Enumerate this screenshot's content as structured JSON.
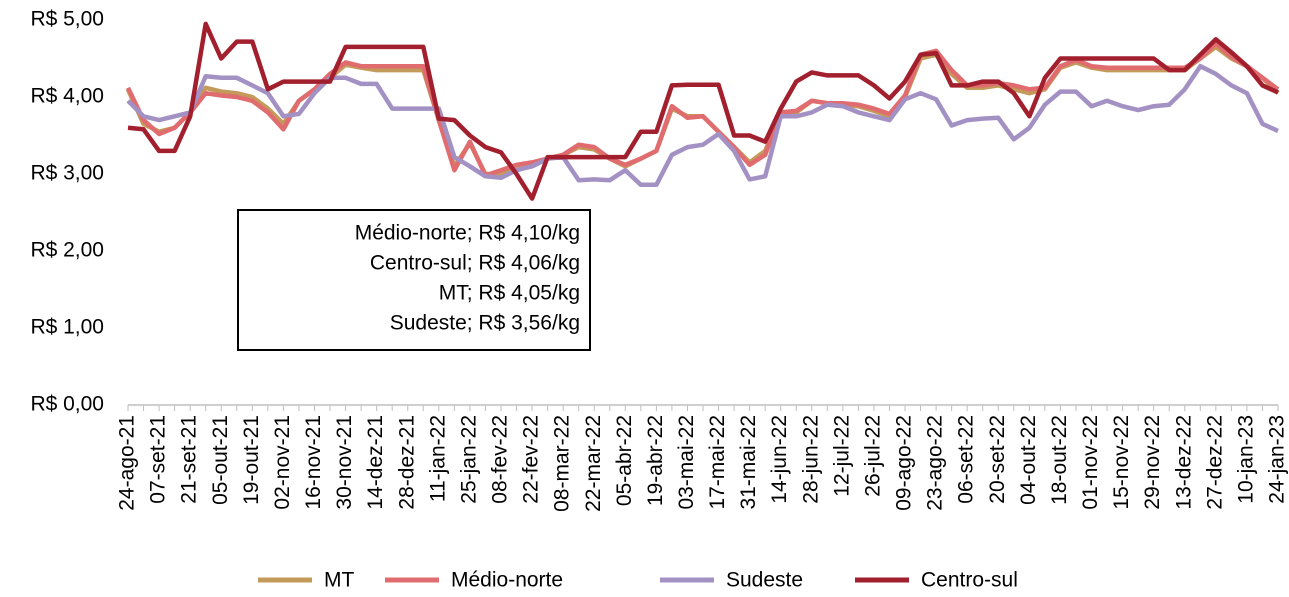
{
  "chart_data": {
    "type": "line",
    "categories": [
      "24-ago-21",
      null,
      "07-set-21",
      null,
      "21-set-21",
      null,
      "05-out-21",
      null,
      "19-out-21",
      null,
      "02-nov-21",
      null,
      "16-nov-21",
      null,
      "30-nov-21",
      null,
      "14-dez-21",
      null,
      "28-dez-21",
      null,
      "11-jan-22",
      null,
      "25-jan-22",
      null,
      "08-fev-22",
      null,
      "22-fev-22",
      null,
      "08-mar-22",
      null,
      "22-mar-22",
      null,
      "05-abr-22",
      null,
      "19-abr-22",
      null,
      "03-mai-22",
      null,
      "17-mai-22",
      null,
      "31-mai-22",
      null,
      "14-jun-22",
      null,
      "28-jun-22",
      null,
      "12-jul-22",
      null,
      "26-jul-22",
      null,
      "09-ago-22",
      null,
      "23-ago-22",
      null,
      "06-set-22",
      null,
      "20-set-22",
      null,
      "04-out-22",
      null,
      "18-out-22",
      null,
      "01-nov-22",
      null,
      "15-nov-22",
      null,
      "29-nov-22",
      null,
      "13-dez-22",
      null,
      "27-dez-22",
      null,
      "10-jan-23",
      null,
      "24-jan-23"
    ],
    "series": [
      {
        "name": "MT",
        "color": "#c49a5a",
        "values": [
          4.1,
          3.65,
          3.55,
          3.6,
          3.8,
          4.12,
          4.07,
          4.05,
          4.0,
          3.85,
          3.65,
          3.95,
          4.1,
          4.25,
          4.42,
          4.38,
          4.35,
          4.35,
          4.35,
          4.35,
          3.7,
          3.1,
          3.4,
          3.0,
          3.0,
          3.1,
          3.1,
          3.2,
          3.25,
          3.35,
          3.32,
          3.2,
          3.1,
          3.2,
          3.3,
          3.85,
          3.75,
          3.75,
          3.55,
          3.35,
          3.15,
          3.3,
          3.78,
          3.8,
          3.95,
          3.92,
          3.9,
          3.88,
          3.82,
          3.75,
          4.0,
          4.5,
          4.55,
          4.3,
          4.12,
          4.12,
          4.15,
          4.1,
          4.05,
          4.1,
          4.38,
          4.45,
          4.38,
          4.35,
          4.35,
          4.35,
          4.35,
          4.35,
          4.35,
          4.5,
          4.65,
          4.5,
          4.4,
          4.25,
          4.05
        ]
      },
      {
        "name": "Médio-norte",
        "color": "#e06c70",
        "values": [
          4.12,
          3.7,
          3.52,
          3.6,
          3.8,
          4.05,
          4.02,
          4.0,
          3.95,
          3.8,
          3.58,
          3.95,
          4.1,
          4.3,
          4.45,
          4.4,
          4.4,
          4.4,
          4.4,
          4.4,
          3.7,
          3.05,
          3.42,
          2.98,
          3.05,
          3.12,
          3.15,
          3.2,
          3.25,
          3.38,
          3.35,
          3.2,
          3.12,
          3.2,
          3.3,
          3.88,
          3.73,
          3.75,
          3.55,
          3.35,
          3.12,
          3.25,
          3.8,
          3.82,
          3.95,
          3.92,
          3.92,
          3.9,
          3.85,
          3.78,
          4.02,
          4.55,
          4.6,
          4.35,
          4.15,
          4.15,
          4.18,
          4.15,
          4.1,
          4.12,
          4.4,
          4.48,
          4.4,
          4.38,
          4.38,
          4.38,
          4.38,
          4.38,
          4.38,
          4.5,
          4.7,
          4.52,
          4.4,
          4.25,
          4.1
        ]
      },
      {
        "name": "Sudeste",
        "color": "#a391c4",
        "values": [
          3.95,
          3.75,
          3.7,
          3.75,
          3.8,
          4.27,
          4.25,
          4.25,
          4.15,
          4.05,
          3.75,
          3.78,
          4.05,
          4.25,
          4.25,
          4.17,
          4.17,
          3.85,
          3.85,
          3.85,
          3.85,
          3.22,
          3.1,
          2.97,
          2.95,
          3.05,
          3.1,
          3.2,
          3.22,
          2.92,
          2.93,
          2.92,
          3.05,
          2.86,
          2.86,
          3.25,
          3.35,
          3.38,
          3.52,
          3.3,
          2.93,
          2.97,
          3.75,
          3.75,
          3.8,
          3.9,
          3.88,
          3.8,
          3.75,
          3.7,
          3.97,
          4.05,
          3.97,
          3.63,
          3.7,
          3.72,
          3.73,
          3.45,
          3.6,
          3.9,
          4.07,
          4.07,
          3.88,
          3.95,
          3.88,
          3.83,
          3.88,
          3.9,
          4.1,
          4.4,
          4.3,
          4.15,
          4.05,
          3.65,
          3.56
        ]
      },
      {
        "name": "Centro-sul",
        "color": "#a21f2e",
        "values": [
          3.6,
          3.58,
          3.3,
          3.3,
          3.75,
          4.95,
          4.5,
          4.72,
          4.72,
          4.1,
          4.2,
          4.2,
          4.2,
          4.2,
          4.65,
          4.65,
          4.65,
          4.65,
          4.65,
          4.65,
          3.72,
          3.7,
          3.5,
          3.35,
          3.28,
          3.0,
          2.68,
          3.22,
          3.22,
          3.22,
          3.22,
          3.22,
          3.22,
          3.55,
          3.55,
          4.15,
          4.16,
          4.16,
          4.16,
          3.5,
          3.5,
          3.42,
          3.85,
          4.2,
          4.32,
          4.28,
          4.28,
          4.28,
          4.15,
          3.98,
          4.2,
          4.55,
          4.57,
          4.15,
          4.15,
          4.2,
          4.2,
          4.05,
          3.75,
          4.25,
          4.5,
          4.5,
          4.5,
          4.5,
          4.5,
          4.5,
          4.5,
          4.35,
          4.35,
          4.55,
          4.75,
          4.58,
          4.4,
          4.15,
          4.06
        ]
      }
    ],
    "ylim": [
      0,
      5
    ],
    "yticks": [
      {
        "value": 0,
        "label": "R$ 0,00"
      },
      {
        "value": 1,
        "label": "R$ 1,00"
      },
      {
        "value": 2,
        "label": "R$ 2,00"
      },
      {
        "value": 3,
        "label": "R$ 3,00"
      },
      {
        "value": 4,
        "label": "R$ 4,00"
      },
      {
        "value": 5,
        "label": "R$ 5,00"
      }
    ],
    "grid": false,
    "legend": "bottom",
    "annotations": [
      "Médio-norte; R$ 4,10/kg",
      "Centro-sul; R$ 4,06/kg",
      "MT; R$ 4,05/kg",
      "Sudeste; R$ 3,56/kg"
    ]
  }
}
